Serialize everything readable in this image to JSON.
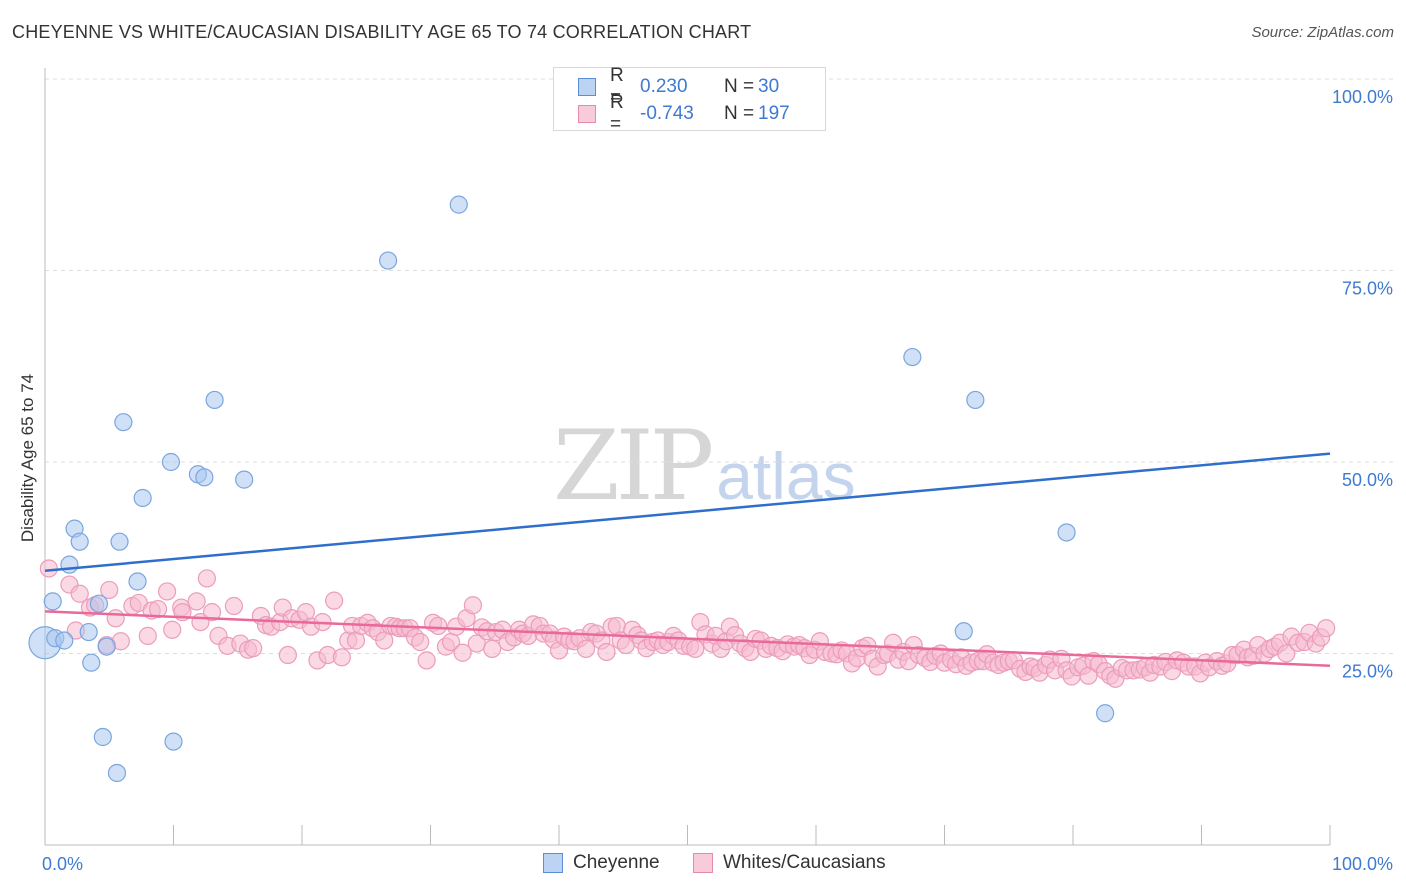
{
  "title": "CHEYENNE VS WHITE/CAUCASIAN DISABILITY AGE 65 TO 74 CORRELATION CHART",
  "source": "Source: ZipAtlas.com",
  "watermark": {
    "zip": "ZIP",
    "atlas": "atlas"
  },
  "legend": {
    "rows": [
      {
        "r_label": "R =",
        "r_value": "0.230",
        "n_label": "N =",
        "n_value": "30"
      },
      {
        "r_label": "R =",
        "r_value": "-0.743",
        "n_label": "N =",
        "n_value": "197"
      }
    ]
  },
  "bottom_legend": [
    "Cheyenne",
    "Whites/Caucasians"
  ],
  "colors": {
    "blue": "#2f6fcb",
    "blue_fill": "#a9c7ef",
    "pink": "#e8699a",
    "pink_fill": "#f5b9cf",
    "tick_label": "#3f7ad1",
    "grid": "#dddddd"
  },
  "chart_data": {
    "type": "scatter",
    "title": "CHEYENNE VS WHITE/CAUCASIAN DISABILITY AGE 65 TO 74 CORRELATION CHART",
    "xlabel": "",
    "ylabel": "Disability Age 65 to 74",
    "xlim": [
      0,
      100
    ],
    "ylim": [
      0,
      100
    ],
    "x_tick_labels": [
      "0.0%",
      "100.0%"
    ],
    "y_ticks": [
      25,
      50,
      75,
      100
    ],
    "y_tick_labels": [
      "25.0%",
      "50.0%",
      "75.0%",
      "100.0%"
    ],
    "grid": true,
    "legend_position": "bottom",
    "series": [
      {
        "name": "Cheyenne",
        "r": 0.23,
        "n": 30,
        "trend": {
          "x": [
            0,
            100
          ],
          "y": [
            35.8,
            51.1
          ]
        },
        "points": [
          [
            0.0,
            26.4
          ],
          [
            0.6,
            31.8
          ],
          [
            0.8,
            27.0
          ],
          [
            1.5,
            26.7
          ],
          [
            1.9,
            36.6
          ],
          [
            2.3,
            41.3
          ],
          [
            2.7,
            39.6
          ],
          [
            3.4,
            27.8
          ],
          [
            3.6,
            23.8
          ],
          [
            4.2,
            31.5
          ],
          [
            4.5,
            14.1
          ],
          [
            4.8,
            25.9
          ],
          [
            5.6,
            9.4
          ],
          [
            5.8,
            39.6
          ],
          [
            6.1,
            55.2
          ],
          [
            7.2,
            34.4
          ],
          [
            7.6,
            45.3
          ],
          [
            9.8,
            50.0
          ],
          [
            10.0,
            13.5
          ],
          [
            11.9,
            48.4
          ],
          [
            12.4,
            48.0
          ],
          [
            13.2,
            58.1
          ],
          [
            15.5,
            47.7
          ],
          [
            26.7,
            76.3
          ],
          [
            32.2,
            83.6
          ],
          [
            67.5,
            63.7
          ],
          [
            71.5,
            27.9
          ],
          [
            72.4,
            58.1
          ],
          [
            79.5,
            40.8
          ],
          [
            82.5,
            17.2
          ]
        ],
        "large_points": [
          0
        ]
      },
      {
        "name": "Whites/Caucasians",
        "r": -0.743,
        "n": 197,
        "trend": {
          "x": [
            0,
            100
          ],
          "y": [
            30.5,
            23.4
          ]
        },
        "points": [
          [
            0.3,
            36.1
          ],
          [
            1.9,
            34.0
          ],
          [
            2.4,
            28.0
          ],
          [
            2.7,
            32.8
          ],
          [
            3.5,
            31.0
          ],
          [
            3.9,
            31.3
          ],
          [
            4.8,
            26.1
          ],
          [
            5.0,
            33.3
          ],
          [
            5.5,
            29.6
          ],
          [
            5.9,
            26.6
          ],
          [
            6.8,
            31.2
          ],
          [
            7.3,
            31.6
          ],
          [
            8.0,
            27.3
          ],
          [
            8.3,
            30.6
          ],
          [
            8.8,
            30.8
          ],
          [
            9.5,
            33.1
          ],
          [
            9.9,
            28.1
          ],
          [
            10.6,
            31.0
          ],
          [
            10.7,
            30.4
          ],
          [
            11.8,
            31.8
          ],
          [
            12.1,
            29.1
          ],
          [
            12.6,
            34.8
          ],
          [
            13.0,
            30.4
          ],
          [
            13.5,
            27.3
          ],
          [
            14.2,
            26.0
          ],
          [
            14.7,
            31.2
          ],
          [
            15.2,
            26.3
          ],
          [
            15.8,
            25.5
          ],
          [
            16.2,
            25.7
          ],
          [
            16.8,
            29.9
          ],
          [
            17.2,
            28.7
          ],
          [
            17.6,
            28.5
          ],
          [
            18.3,
            29.1
          ],
          [
            18.5,
            31.0
          ],
          [
            18.9,
            24.8
          ],
          [
            19.2,
            29.6
          ],
          [
            19.8,
            29.4
          ],
          [
            20.3,
            30.4
          ],
          [
            20.7,
            28.5
          ],
          [
            21.2,
            24.1
          ],
          [
            21.6,
            29.1
          ],
          [
            22.0,
            24.8
          ],
          [
            22.5,
            31.9
          ],
          [
            23.1,
            24.5
          ],
          [
            23.6,
            26.7
          ],
          [
            23.9,
            28.6
          ],
          [
            24.2,
            26.7
          ],
          [
            24.6,
            28.6
          ],
          [
            25.1,
            29.0
          ],
          [
            25.5,
            28.3
          ],
          [
            25.9,
            27.8
          ],
          [
            26.4,
            26.7
          ],
          [
            26.9,
            28.6
          ],
          [
            27.3,
            28.5
          ],
          [
            27.6,
            28.3
          ],
          [
            28.0,
            28.3
          ],
          [
            28.4,
            28.3
          ],
          [
            28.8,
            27.1
          ],
          [
            29.2,
            26.5
          ],
          [
            29.7,
            24.1
          ],
          [
            30.2,
            29.0
          ],
          [
            30.6,
            28.6
          ],
          [
            31.2,
            25.9
          ],
          [
            31.6,
            26.5
          ],
          [
            32.0,
            28.5
          ],
          [
            32.5,
            25.1
          ],
          [
            32.8,
            29.6
          ],
          [
            33.3,
            31.3
          ],
          [
            33.6,
            26.3
          ],
          [
            34.0,
            28.4
          ],
          [
            34.4,
            27.9
          ],
          [
            34.8,
            25.6
          ],
          [
            35.1,
            27.8
          ],
          [
            35.6,
            28.1
          ],
          [
            36.0,
            26.5
          ],
          [
            36.5,
            27.1
          ],
          [
            36.9,
            28.1
          ],
          [
            37.2,
            27.6
          ],
          [
            37.6,
            27.3
          ],
          [
            38.0,
            28.8
          ],
          [
            38.5,
            28.6
          ],
          [
            38.8,
            27.6
          ],
          [
            39.3,
            27.6
          ],
          [
            39.6,
            26.8
          ],
          [
            40.0,
            25.4
          ],
          [
            40.4,
            27.2
          ],
          [
            40.8,
            26.7
          ],
          [
            41.2,
            26.6
          ],
          [
            41.6,
            27.0
          ],
          [
            42.1,
            25.6
          ],
          [
            42.5,
            27.8
          ],
          [
            42.9,
            27.6
          ],
          [
            43.3,
            26.7
          ],
          [
            43.7,
            25.2
          ],
          [
            44.1,
            28.5
          ],
          [
            44.5,
            28.6
          ],
          [
            44.8,
            26.7
          ],
          [
            45.2,
            26.1
          ],
          [
            45.7,
            28.1
          ],
          [
            46.1,
            27.4
          ],
          [
            46.4,
            26.7
          ],
          [
            46.8,
            25.7
          ],
          [
            47.3,
            26.5
          ],
          [
            47.7,
            26.7
          ],
          [
            48.1,
            26.1
          ],
          [
            48.5,
            26.5
          ],
          [
            48.9,
            27.3
          ],
          [
            49.3,
            26.7
          ],
          [
            49.7,
            26.0
          ],
          [
            50.2,
            25.9
          ],
          [
            50.6,
            25.6
          ],
          [
            51.0,
            29.1
          ],
          [
            51.4,
            27.5
          ],
          [
            51.9,
            26.3
          ],
          [
            52.2,
            27.3
          ],
          [
            52.6,
            25.6
          ],
          [
            53.0,
            26.6
          ],
          [
            53.3,
            28.5
          ],
          [
            53.7,
            27.4
          ],
          [
            54.1,
            26.3
          ],
          [
            54.5,
            25.7
          ],
          [
            54.9,
            25.2
          ],
          [
            55.3,
            26.9
          ],
          [
            55.7,
            26.7
          ],
          [
            56.1,
            25.6
          ],
          [
            56.5,
            26.0
          ],
          [
            57.0,
            25.7
          ],
          [
            57.4,
            25.3
          ],
          [
            57.8,
            26.2
          ],
          [
            58.3,
            25.9
          ],
          [
            58.7,
            26.1
          ],
          [
            59.1,
            25.7
          ],
          [
            59.5,
            24.8
          ],
          [
            59.9,
            25.5
          ],
          [
            60.3,
            26.6
          ],
          [
            60.7,
            25.2
          ],
          [
            61.2,
            25.0
          ],
          [
            61.6,
            24.9
          ],
          [
            62.0,
            25.4
          ],
          [
            62.4,
            25.0
          ],
          [
            62.8,
            23.7
          ],
          [
            63.2,
            24.4
          ],
          [
            63.6,
            25.7
          ],
          [
            64.0,
            26.0
          ],
          [
            64.4,
            24.3
          ],
          [
            64.8,
            23.3
          ],
          [
            65.3,
            24.8
          ],
          [
            65.6,
            25.0
          ],
          [
            66.0,
            26.4
          ],
          [
            66.4,
            24.2
          ],
          [
            66.8,
            25.2
          ],
          [
            67.2,
            24.0
          ],
          [
            67.6,
            26.1
          ],
          [
            68.0,
            24.8
          ],
          [
            68.5,
            24.4
          ],
          [
            68.9,
            23.9
          ],
          [
            69.3,
            24.7
          ],
          [
            69.7,
            25.0
          ],
          [
            70.0,
            23.8
          ],
          [
            70.5,
            24.2
          ],
          [
            70.9,
            23.6
          ],
          [
            71.3,
            24.5
          ],
          [
            71.7,
            23.4
          ],
          [
            72.1,
            23.8
          ],
          [
            72.6,
            24.0
          ],
          [
            73.0,
            24.0
          ],
          [
            73.3,
            24.9
          ],
          [
            73.8,
            23.8
          ],
          [
            74.2,
            23.5
          ],
          [
            74.6,
            23.8
          ],
          [
            75.0,
            24.0
          ],
          [
            75.4,
            24.1
          ],
          [
            75.9,
            23.0
          ],
          [
            76.3,
            22.6
          ],
          [
            76.7,
            23.3
          ],
          [
            77.0,
            23.1
          ],
          [
            77.4,
            22.5
          ],
          [
            77.9,
            23.5
          ],
          [
            78.2,
            24.2
          ],
          [
            78.6,
            22.8
          ],
          [
            79.1,
            24.3
          ],
          [
            79.5,
            22.8
          ],
          [
            79.9,
            22.0
          ],
          [
            80.4,
            23.2
          ],
          [
            80.8,
            23.4
          ],
          [
            81.2,
            22.1
          ],
          [
            81.6,
            24.0
          ],
          [
            82.0,
            23.6
          ],
          [
            82.5,
            22.7
          ],
          [
            82.9,
            22.1
          ],
          [
            83.3,
            21.7
          ],
          [
            83.8,
            23.1
          ],
          [
            84.2,
            22.8
          ],
          [
            84.7,
            22.8
          ],
          [
            85.2,
            22.9
          ],
          [
            85.6,
            23.2
          ],
          [
            86.0,
            22.5
          ],
          [
            86.3,
            23.5
          ],
          [
            86.8,
            23.3
          ],
          [
            87.2,
            23.9
          ],
          [
            87.7,
            22.7
          ],
          [
            88.1,
            24.1
          ],
          [
            88.6,
            23.8
          ],
          [
            89.0,
            23.3
          ],
          [
            89.5,
            23.3
          ],
          [
            89.9,
            22.4
          ],
          [
            90.3,
            23.8
          ],
          [
            90.6,
            23.2
          ],
          [
            91.2,
            24.0
          ],
          [
            91.6,
            23.4
          ],
          [
            92.0,
            23.7
          ],
          [
            92.4,
            24.8
          ],
          [
            92.8,
            24.8
          ],
          [
            93.3,
            25.5
          ],
          [
            93.6,
            24.5
          ],
          [
            94.0,
            24.7
          ],
          [
            94.4,
            26.1
          ],
          [
            94.9,
            25.0
          ],
          [
            95.3,
            25.6
          ],
          [
            95.7,
            25.9
          ],
          [
            96.1,
            26.4
          ],
          [
            96.6,
            25.0
          ],
          [
            97.0,
            27.2
          ],
          [
            97.5,
            26.4
          ],
          [
            98.0,
            26.5
          ],
          [
            98.4,
            27.7
          ],
          [
            98.9,
            26.3
          ],
          [
            99.3,
            27.1
          ],
          [
            99.7,
            28.3
          ]
        ]
      }
    ]
  }
}
